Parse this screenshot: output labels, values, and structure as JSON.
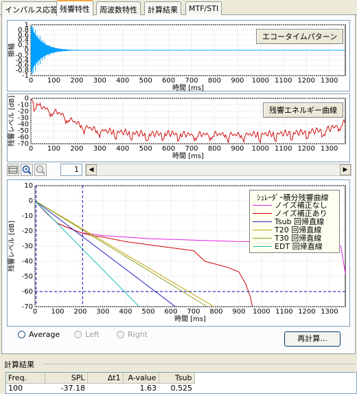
{
  "tabs": [
    "インパルス応答",
    "残響特性",
    "周波数特性",
    "計算結果",
    "MTF/STI"
  ],
  "active_tab": 1,
  "charts": {
    "echo": {
      "legend": "エコータイムパターン",
      "ylabel": "振幅",
      "xlabel": "時間 [ms]",
      "yticks": [
        "1",
        "0.8",
        "0.6",
        "0.4",
        "0.2",
        "0",
        "-0.2",
        "-0.4",
        "-0.6",
        "-0.8",
        "-1"
      ],
      "xticks": [
        "0",
        "100",
        "200",
        "300",
        "400",
        "500",
        "600",
        "700",
        "800",
        "900",
        "1000",
        "1100",
        "1200",
        "1300"
      ],
      "color": "#00a0ff"
    },
    "energy": {
      "legend": "残響エネルギー曲線",
      "ylabel": "残響レベル [dB]",
      "xlabel": "時間 [ms]",
      "yticks": [
        "0",
        "-10",
        "-20",
        "-30",
        "-40",
        "-50",
        "-60",
        "-70"
      ],
      "xticks": [
        "0",
        "100",
        "200",
        "300",
        "400",
        "500",
        "600",
        "700",
        "800",
        "900",
        "1000",
        "1100",
        "1200",
        "1300"
      ],
      "color": "#d01010"
    },
    "schroeder": {
      "ylabel": "残響レベル [dB]",
      "xlabel": "時間 [ms]",
      "yticks": [
        "10",
        "0",
        "-10",
        "-20",
        "-30",
        "-40",
        "-50",
        "-60",
        "-70"
      ],
      "xticks": [
        "0",
        "100",
        "200",
        "300",
        "400",
        "500",
        "600",
        "700",
        "800",
        "900",
        "1000",
        "1100",
        "1200",
        "1300"
      ],
      "legend_title": "ｼｭﾚｰﾀﾞｰ積分残響曲線",
      "legend_items": [
        {
          "label": "ノイズ補正なし",
          "color": "#e020e0"
        },
        {
          "label": "ノイズ補正あり",
          "color": "#d00000"
        },
        {
          "label": "Tsub 回帰直線",
          "color": "#2020c0"
        },
        {
          "label": "T20 回帰直線",
          "color": "#c0a000"
        },
        {
          "label": "T30 回帰直線",
          "color": "#90a020"
        },
        {
          "label": "EDT 回帰直線",
          "color": "#20c0c0"
        }
      ]
    }
  },
  "chart_data": [
    {
      "type": "line",
      "ylabel": "振幅",
      "xlabel": "時間 [ms]",
      "xlim": [
        0,
        1370
      ],
      "ylim": [
        -1,
        1
      ],
      "series": [
        {
          "x": [
            0,
            5,
            10,
            20,
            30,
            40,
            50,
            60,
            80,
            100,
            150,
            200,
            300,
            400,
            600,
            1000,
            1370
          ],
          "values": [
            0,
            0.95,
            -0.9,
            0.8,
            -0.6,
            0.55,
            -0.4,
            0.35,
            0.2,
            0.12,
            0.05,
            0.03,
            0.02,
            0.01,
            0.01,
            0.01,
            0
          ]
        }
      ]
    },
    {
      "type": "line",
      "ylabel": "残響レベル [dB]",
      "xlabel": "時間 [ms]",
      "xlim": [
        0,
        1370
      ],
      "ylim": [
        -70,
        0
      ],
      "series": [
        {
          "x": [
            0,
            10,
            40,
            80,
            120,
            160,
            200,
            240,
            280,
            320,
            400,
            500,
            600,
            700,
            800,
            900,
            1000,
            1100,
            1200,
            1300,
            1370
          ],
          "values": [
            -2,
            -5,
            -12,
            -18,
            -22,
            -30,
            -38,
            -44,
            -48,
            -50,
            -52,
            -55,
            -54,
            -56,
            -55,
            -56,
            -55,
            -54,
            -52,
            -47,
            -37
          ]
        }
      ]
    },
    {
      "type": "line",
      "ylabel": "残響レベル [dB]",
      "xlabel": "時間 [ms]",
      "xlim": [
        0,
        1370
      ],
      "ylim": [
        -70,
        10
      ],
      "series": [
        {
          "name": "ノイズ補正なし",
          "x": [
            0,
            50,
            100,
            150,
            200,
            250,
            300,
            400,
            500,
            600,
            700,
            800,
            900,
            1000,
            1100,
            1200,
            1300,
            1350,
            1370
          ],
          "values": [
            0,
            -8,
            -15,
            -18,
            -21,
            -22,
            -23,
            -24,
            -25,
            -25.5,
            -26,
            -26.5,
            -27,
            -27,
            -27.5,
            -27.5,
            -28,
            -30,
            -48
          ]
        },
        {
          "name": "ノイズ補正あり",
          "x": [
            0,
            50,
            100,
            150,
            200,
            250,
            300,
            400,
            500,
            600,
            700,
            750,
            800,
            850,
            900,
            930,
            950,
            960
          ],
          "values": [
            0,
            -8,
            -15,
            -18,
            -21,
            -23,
            -24,
            -27,
            -29,
            -31,
            -33,
            -40,
            -42,
            -44,
            -47,
            -55,
            -63,
            -70
          ]
        },
        {
          "name": "Tsub 回帰直線",
          "x": [
            0,
            620
          ],
          "values": [
            0,
            -70
          ]
        },
        {
          "name": "T20 回帰直線",
          "x": [
            0,
            790
          ],
          "values": [
            0,
            -70
          ]
        },
        {
          "name": "T30 回帰直線",
          "x": [
            0,
            760
          ],
          "values": [
            0,
            -70
          ]
        },
        {
          "name": "EDT 回帰直線",
          "x": [
            0,
            460
          ],
          "values": [
            0,
            -70
          ]
        }
      ]
    }
  ],
  "toolbar": {
    "page": "1"
  },
  "radio": {
    "average": "Average",
    "left": "Left",
    "right": "Right"
  },
  "recalc_label": "再計算...",
  "results": {
    "title": "計算結果",
    "columns": [
      "Freq.",
      "SPL",
      "∆t1",
      "A-value",
      "Tsub"
    ],
    "rows": [
      [
        "100",
        "-37.18",
        "",
        "1.63",
        "0.525"
      ]
    ]
  }
}
